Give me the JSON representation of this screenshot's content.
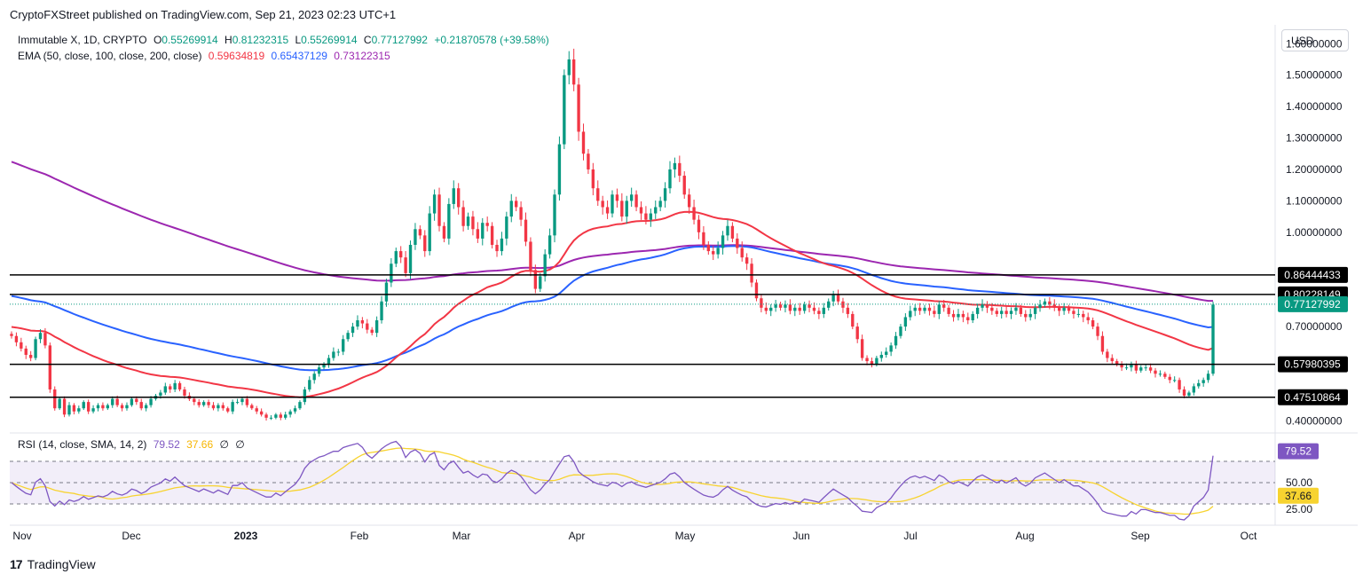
{
  "header": "CryptoFXStreet published on TradingView.com, Sep 21, 2023 02:23 UTC+1",
  "legend": {
    "symbol": "Immutable X, 1D, CRYPTO",
    "o_label": "O",
    "o": "0.55269914",
    "h_label": "H",
    "h": "0.81232315",
    "l_label": "L",
    "l": "0.55269914",
    "c_label": "C",
    "c": "0.77127992",
    "change": "+0.21870578 (+39.58%)",
    "ema_label": "EMA (50, close, 100, close, 200, close)",
    "ema50": "0.59634819",
    "ema100": "0.65437129",
    "ema200": "0.73122315"
  },
  "currency_button": "USD",
  "rsi_legend": {
    "label": "RSI (14, close, SMA, 14, 2)",
    "rsi": "79.52",
    "sma": "37.66",
    "extra1": "∅",
    "extra2": "∅"
  },
  "footer": {
    "logo": "17",
    "brand": "TradingView"
  },
  "colors": {
    "up": "#089981",
    "down": "#f23645",
    "ema50": "#f23645",
    "ema100": "#2962ff",
    "ema200": "#9c27b0",
    "rsi": "#7e57c2",
    "rsi_sma": "#f7d330"
  },
  "chart_data": {
    "type": "candlestick",
    "symbol": "Immutable X, 1D, CRYPTO",
    "x_tick_labels": [
      "Nov",
      "Dec",
      "2023",
      "Feb",
      "Mar",
      "Apr",
      "May",
      "Jun",
      "Jul",
      "Aug",
      "Sep",
      "Oct"
    ],
    "y_tick_labels": [
      "1.60000000",
      "1.50000000",
      "1.40000000",
      "1.30000000",
      "1.20000000",
      "1.10000000",
      "1.00000000",
      "0.70000000",
      "0.40000000"
    ],
    "ylim": [
      0.37,
      1.66
    ],
    "horizontal_levels": [
      {
        "value": 0.86444433,
        "label": "0.86444433"
      },
      {
        "value": 0.80228149,
        "label": "0.80228149"
      },
      {
        "value": 0.57980395,
        "label": "0.57980395"
      },
      {
        "value": 0.47510864,
        "label": "0.47510864"
      }
    ],
    "last_price": {
      "value": 0.77127992,
      "label": "0.77127992"
    },
    "close_series": [
      0.67,
      0.65,
      0.63,
      0.61,
      0.6,
      0.66,
      0.68,
      0.64,
      0.5,
      0.44,
      0.47,
      0.42,
      0.45,
      0.43,
      0.44,
      0.46,
      0.43,
      0.44,
      0.45,
      0.44,
      0.45,
      0.47,
      0.45,
      0.44,
      0.45,
      0.47,
      0.46,
      0.44,
      0.45,
      0.47,
      0.48,
      0.49,
      0.51,
      0.5,
      0.52,
      0.5,
      0.48,
      0.47,
      0.46,
      0.45,
      0.46,
      0.45,
      0.44,
      0.45,
      0.44,
      0.43,
      0.46,
      0.46,
      0.47,
      0.45,
      0.44,
      0.43,
      0.42,
      0.41,
      0.41,
      0.42,
      0.41,
      0.42,
      0.43,
      0.44,
      0.46,
      0.5,
      0.53,
      0.55,
      0.57,
      0.58,
      0.6,
      0.62,
      0.62,
      0.66,
      0.68,
      0.7,
      0.72,
      0.71,
      0.69,
      0.68,
      0.72,
      0.78,
      0.84,
      0.9,
      0.94,
      0.92,
      0.87,
      0.96,
      1.01,
      0.99,
      0.94,
      1.06,
      1.12,
      1.02,
      0.98,
      1.09,
      1.14,
      1.08,
      1.02,
      1.05,
      1.01,
      0.98,
      1.03,
      1.02,
      0.96,
      0.94,
      0.98,
      1.05,
      1.1,
      1.08,
      1.04,
      0.97,
      0.88,
      0.82,
      0.86,
      0.93,
      0.99,
      1.12,
      1.28,
      1.5,
      1.55,
      1.47,
      1.32,
      1.25,
      1.2,
      1.14,
      1.1,
      1.08,
      1.06,
      1.12,
      1.1,
      1.05,
      1.1,
      1.12,
      1.08,
      1.06,
      1.04,
      1.06,
      1.08,
      1.1,
      1.14,
      1.2,
      1.22,
      1.18,
      1.12,
      1.08,
      1.04,
      1.0,
      0.96,
      0.94,
      0.93,
      0.95,
      0.99,
      1.02,
      0.98,
      0.95,
      0.92,
      0.9,
      0.84,
      0.79,
      0.76,
      0.75,
      0.76,
      0.77,
      0.76,
      0.77,
      0.75,
      0.76,
      0.75,
      0.77,
      0.76,
      0.75,
      0.74,
      0.76,
      0.78,
      0.8,
      0.78,
      0.76,
      0.74,
      0.7,
      0.66,
      0.6,
      0.59,
      0.58,
      0.6,
      0.61,
      0.62,
      0.64,
      0.67,
      0.7,
      0.73,
      0.75,
      0.76,
      0.75,
      0.76,
      0.75,
      0.74,
      0.77,
      0.76,
      0.74,
      0.73,
      0.74,
      0.73,
      0.72,
      0.74,
      0.76,
      0.77,
      0.76,
      0.75,
      0.74,
      0.75,
      0.74,
      0.75,
      0.76,
      0.74,
      0.73,
      0.74,
      0.76,
      0.77,
      0.78,
      0.77,
      0.76,
      0.75,
      0.76,
      0.75,
      0.74,
      0.74,
      0.73,
      0.72,
      0.7,
      0.67,
      0.62,
      0.6,
      0.59,
      0.58,
      0.57,
      0.57,
      0.58,
      0.56,
      0.57,
      0.57,
      0.56,
      0.55,
      0.55,
      0.54,
      0.53,
      0.53,
      0.5,
      0.48,
      0.49,
      0.51,
      0.52,
      0.53,
      0.55,
      0.77
    ]
  },
  "rsi_data": {
    "label": "RSI (14, close, SMA, 14, 2)",
    "levels": [
      70,
      50,
      30
    ],
    "y_tick_labels": [
      "50.00",
      "25.00"
    ],
    "last_rsi": "79.52",
    "last_sma": "37.66"
  }
}
